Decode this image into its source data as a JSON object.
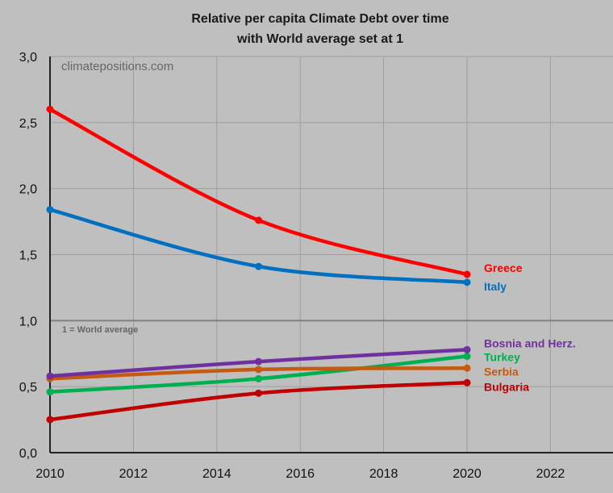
{
  "chart_data": {
    "type": "line",
    "title": "Relative per capita Climate Debt over time",
    "subtitle": "with World average set at 1",
    "watermark": "climatepositions.com",
    "reference_label": "1 = World average",
    "reference_value": 1.0,
    "xlabel": "",
    "ylabel": "",
    "xlim": [
      2010,
      2023.5
    ],
    "ylim": [
      0,
      3
    ],
    "x_ticks": [
      2010,
      2012,
      2014,
      2016,
      2018,
      2020,
      2022
    ],
    "x_tick_labels": [
      "2010",
      "2012",
      "2014",
      "2016",
      "2018",
      "2020",
      "2022"
    ],
    "y_ticks": [
      0,
      0.5,
      1,
      1.5,
      2,
      2.5,
      3
    ],
    "y_tick_labels": [
      "0,0",
      "0,5",
      "1,0",
      "1,5",
      "2,0",
      "2,5",
      "3,0"
    ],
    "grid": true,
    "legend": "inline labels at right end of lines",
    "x": [
      2010,
      2015,
      2020
    ],
    "series": [
      {
        "name": "Greece",
        "values": [
          2.6,
          1.76,
          1.35
        ],
        "color": "#ff0000"
      },
      {
        "name": "Italy",
        "values": [
          1.84,
          1.41,
          1.29
        ],
        "color": "#0070c0"
      },
      {
        "name": "Bosnia and Herz.",
        "values": [
          0.58,
          0.69,
          0.78
        ],
        "color": "#7030a0"
      },
      {
        "name": "Turkey",
        "values": [
          0.46,
          0.56,
          0.73
        ],
        "color": "#00b050"
      },
      {
        "name": "Serbia",
        "values": [
          0.56,
          0.63,
          0.64
        ],
        "color": "#c55a11"
      },
      {
        "name": "Bulgaria",
        "values": [
          0.25,
          0.45,
          0.53
        ],
        "color": "#c00000"
      }
    ]
  }
}
